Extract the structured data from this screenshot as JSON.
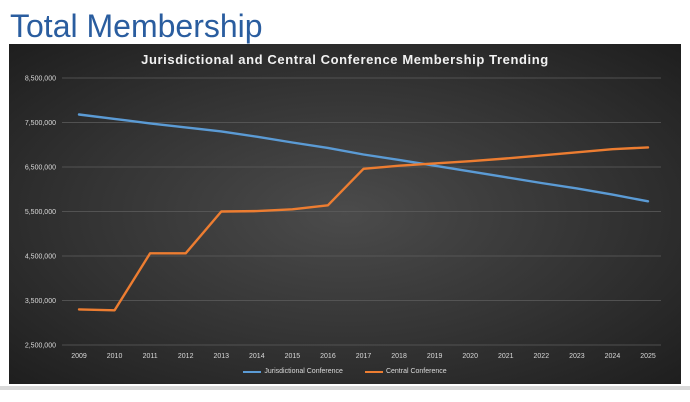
{
  "slide": {
    "title": "Total Membership"
  },
  "chart_data": {
    "type": "line",
    "title": "Jurisdictional and Central Conference Membership Trending",
    "xlabel": "",
    "ylabel": "",
    "categories": [
      "2009",
      "2010",
      "2011",
      "2012",
      "2013",
      "2014",
      "2015",
      "2016",
      "2017",
      "2018",
      "2019",
      "2020",
      "2021",
      "2022",
      "2023",
      "2024",
      "2025"
    ],
    "ylim": [
      2500000,
      8500000
    ],
    "yticks": [
      2500000,
      3500000,
      4500000,
      5500000,
      6500000,
      7500000,
      8500000
    ],
    "ytick_labels": [
      "2,500,000",
      "3,500,000",
      "4,500,000",
      "5,500,000",
      "6,500,000",
      "7,500,000",
      "8,500,000"
    ],
    "grid": true,
    "legend_position": "bottom",
    "series": [
      {
        "name": "Jurisdictional Conference",
        "color": "#5b9bd5",
        "values": [
          7680000,
          7580000,
          7480000,
          7390000,
          7300000,
          7180000,
          7050000,
          6930000,
          6780000,
          6660000,
          6530000,
          6400000,
          6270000,
          6140000,
          6020000,
          5880000,
          5730000
        ]
      },
      {
        "name": "Central Conference",
        "color": "#ed7d31",
        "values": [
          3300000,
          3280000,
          4560000,
          4560000,
          5500000,
          5510000,
          5550000,
          5640000,
          6460000,
          6530000,
          6580000,
          6630000,
          6690000,
          6760000,
          6830000,
          6900000,
          6940000
        ]
      }
    ]
  }
}
